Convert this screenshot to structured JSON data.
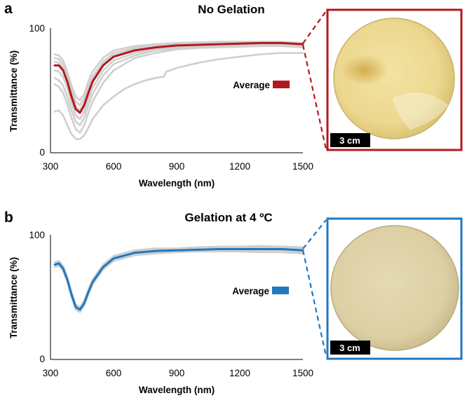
{
  "colors": {
    "panel_a_accent": "#b5171f",
    "panel_b_accent": "#1f78c0",
    "replicate_gray": "#cfcfcf",
    "sample_a_fill": "#ecd88f",
    "sample_b_fill": "#dccfa4"
  },
  "chart_data": [
    {
      "type": "line",
      "panel_label": "a",
      "title": "No Gelation",
      "xlabel": "Wavelength (nm)",
      "ylabel": "Transmittance (%)",
      "xlim": [
        300,
        1500
      ],
      "ylim": [
        0,
        100
      ],
      "xticks": [
        "300",
        "600",
        "900",
        "1200",
        "1500"
      ],
      "yticks": [
        "0",
        "100"
      ],
      "grid": false,
      "legend": {
        "label": "Average",
        "color": "#b5171f",
        "placement": "middle-right"
      },
      "photo_scale_label": "3 cm",
      "series": [
        {
          "name": "Average",
          "color": "#b5171f",
          "x": [
            320,
            340,
            360,
            380,
            400,
            420,
            440,
            460,
            480,
            500,
            550,
            600,
            700,
            800,
            900,
            1000,
            1100,
            1200,
            1300,
            1400,
            1500
          ],
          "values": [
            70,
            70,
            66,
            57,
            45,
            35,
            32,
            38,
            48,
            57,
            70,
            77,
            82,
            84.5,
            86,
            86.5,
            87,
            87.5,
            88,
            88,
            87
          ]
        },
        {
          "name": "Replicate 1",
          "color": "#cfcfcf",
          "x": [
            320,
            340,
            360,
            380,
            400,
            420,
            440,
            460,
            480,
            500,
            550,
            600,
            700,
            800,
            900,
            1000,
            1100,
            1200,
            1300,
            1400,
            1500
          ],
          "values": [
            79,
            78,
            74,
            65,
            54,
            45,
            42,
            47,
            57,
            65,
            76,
            82,
            85.5,
            87,
            88,
            88.5,
            89,
            89,
            89,
            89,
            88
          ]
        },
        {
          "name": "Replicate 2",
          "color": "#cfcfcf",
          "x": [
            320,
            340,
            360,
            380,
            400,
            420,
            440,
            460,
            480,
            500,
            550,
            600,
            700,
            800,
            900,
            1000,
            1100,
            1200,
            1300,
            1400,
            1500
          ],
          "values": [
            76,
            75,
            71,
            62,
            51,
            41,
            38,
            44,
            53,
            61,
            73,
            80,
            84,
            86,
            87,
            87.5,
            88,
            88.5,
            88.5,
            88.5,
            87.5
          ]
        },
        {
          "name": "Replicate 3",
          "color": "#cfcfcf",
          "x": [
            320,
            340,
            360,
            380,
            400,
            420,
            440,
            460,
            480,
            500,
            550,
            600,
            700,
            800,
            900,
            1000,
            1100,
            1200,
            1300,
            1400,
            1500
          ],
          "values": [
            73,
            72,
            68,
            59,
            47,
            37,
            34,
            40,
            50,
            58,
            71,
            78,
            83,
            85,
            86.5,
            87,
            87.5,
            88,
            88,
            88,
            87
          ]
        },
        {
          "name": "Replicate 4",
          "color": "#cfcfcf",
          "x": [
            320,
            340,
            360,
            380,
            400,
            420,
            440,
            460,
            480,
            500,
            550,
            600,
            700,
            800,
            900,
            1000,
            1100,
            1200,
            1300,
            1400,
            1500
          ],
          "values": [
            66,
            65,
            61,
            52,
            40,
            30,
            27,
            33,
            43,
            52,
            66,
            74,
            80,
            83,
            84.5,
            85.5,
            86,
            86.5,
            87,
            87,
            86
          ]
        },
        {
          "name": "Replicate 5",
          "color": "#cfcfcf",
          "x": [
            320,
            340,
            360,
            380,
            400,
            420,
            440,
            460,
            480,
            500,
            550,
            600,
            700,
            800,
            900,
            1000,
            1100,
            1200,
            1300,
            1400,
            1500
          ],
          "values": [
            60,
            58,
            54,
            45,
            34,
            25,
            22,
            28,
            38,
            47,
            62,
            71,
            78,
            82,
            84,
            85,
            85.5,
            86,
            86.5,
            86.5,
            85.5
          ]
        },
        {
          "name": "Replicate 6",
          "color": "#cfcfcf",
          "x": [
            320,
            340,
            360,
            380,
            400,
            420,
            440,
            460,
            480,
            500,
            550,
            600,
            700,
            800,
            900,
            1000,
            1100,
            1200,
            1300,
            1400,
            1500
          ],
          "values": [
            55,
            53,
            48,
            39,
            28,
            19,
            16,
            22,
            32,
            41,
            56,
            66,
            76,
            80,
            83,
            84,
            84.5,
            85,
            85.5,
            85.5,
            84.5
          ]
        },
        {
          "name": "Replicate 7",
          "color": "#cfcfcf",
          "x": [
            320,
            340,
            360,
            380,
            400,
            420,
            440,
            460,
            480,
            500,
            550,
            600,
            650,
            700,
            750,
            800,
            840,
            850,
            900,
            1000,
            1100,
            1200,
            1300,
            1400,
            1500
          ],
          "values": [
            33,
            34,
            30,
            22,
            15,
            11,
            11,
            14,
            20,
            27,
            38,
            45,
            51,
            55,
            58,
            60,
            61,
            65,
            68,
            72,
            75,
            77,
            79,
            80,
            80
          ]
        }
      ]
    },
    {
      "type": "line",
      "panel_label": "b",
      "title": "Gelation at 4 ºC",
      "xlabel": "Wavelength (nm)",
      "ylabel": "Transmittance (%)",
      "xlim": [
        300,
        1500
      ],
      "ylim": [
        0,
        100
      ],
      "xticks": [
        "300",
        "600",
        "900",
        "1200",
        "1500"
      ],
      "yticks": [
        "0",
        "100"
      ],
      "grid": false,
      "legend": {
        "label": "Average",
        "color": "#1f78c0",
        "placement": "middle-right"
      },
      "photo_scale_label": "3 cm",
      "series": [
        {
          "name": "Average",
          "color": "#1f78c0",
          "x": [
            320,
            340,
            360,
            380,
            400,
            420,
            440,
            460,
            480,
            500,
            550,
            600,
            700,
            800,
            900,
            1000,
            1100,
            1200,
            1300,
            1400,
            1500
          ],
          "values": [
            76,
            77,
            73,
            64,
            52,
            42,
            40,
            45,
            54,
            62,
            74,
            81,
            85.5,
            87,
            87.5,
            88,
            88.5,
            88.5,
            88.5,
            88.5,
            87.5
          ]
        },
        {
          "name": "Replicate band upper",
          "color": "#cfcfcf",
          "x": [
            320,
            340,
            360,
            380,
            400,
            420,
            440,
            460,
            480,
            500,
            550,
            600,
            700,
            800,
            900,
            1000,
            1100,
            1200,
            1300,
            1400,
            1500
          ],
          "values": [
            78,
            79,
            75,
            66,
            54,
            44,
            42,
            47,
            56,
            64,
            76,
            83,
            87.5,
            89,
            89,
            90,
            90.5,
            90.5,
            91,
            90.5,
            90
          ]
        },
        {
          "name": "Replicate band lower",
          "color": "#cfcfcf",
          "x": [
            320,
            340,
            360,
            380,
            400,
            420,
            440,
            460,
            480,
            500,
            550,
            600,
            700,
            800,
            900,
            1000,
            1100,
            1200,
            1300,
            1400,
            1500
          ],
          "values": [
            74,
            75,
            71,
            62,
            50,
            40,
            38,
            43,
            52,
            60,
            72,
            79,
            83.5,
            85,
            86,
            86.5,
            86.5,
            86.5,
            86,
            86,
            85
          ]
        }
      ]
    }
  ]
}
